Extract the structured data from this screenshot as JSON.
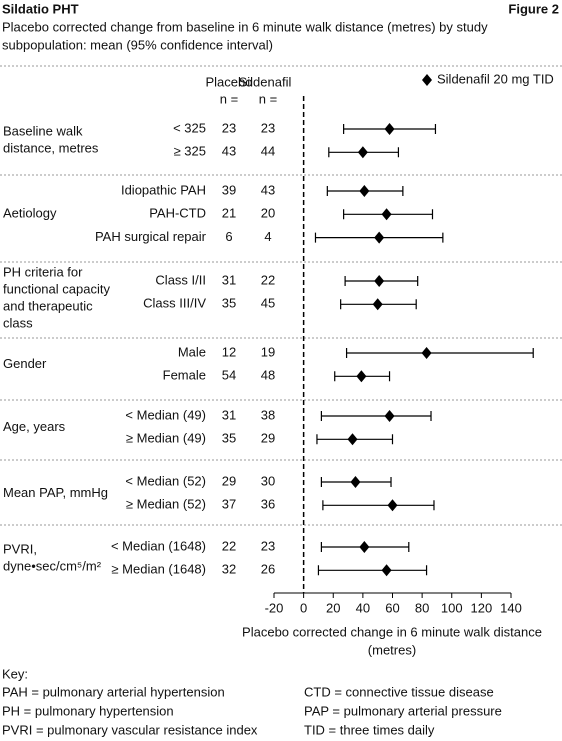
{
  "chart_data": {
    "type": "forest",
    "title": "Sildatio PHT",
    "figure_label": "Figure 2",
    "subtitle_lines": [
      "Placebo corrected change from baseline in 6 minute walk distance (metres) by study",
      "subpopulation: mean (95% confidence interval)"
    ],
    "columns": [
      {
        "name": "Placebo",
        "sub": "n ="
      },
      {
        "name": "Sildenafil",
        "sub": "n ="
      }
    ],
    "series": [
      {
        "name": "Sildenafil 20 mg TID",
        "color": "#000000"
      }
    ],
    "groups": [
      {
        "label_lines": [
          "Baseline walk",
          "distance, metres"
        ],
        "rows": [
          {
            "label": "< 325",
            "placebo_n": 23,
            "sildenafil_n": 23,
            "estimate": 58,
            "lower": 27,
            "upper": 89
          },
          {
            "label": "≥ 325",
            "placebo_n": 43,
            "sildenafil_n": 44,
            "estimate": 40,
            "lower": 17,
            "upper": 64
          }
        ]
      },
      {
        "label_lines": [
          "Aetiology"
        ],
        "rows": [
          {
            "label": "Idiopathic PAH",
            "placebo_n": 39,
            "sildenafil_n": 43,
            "estimate": 41,
            "lower": 16,
            "upper": 67
          },
          {
            "label": "PAH-CTD",
            "placebo_n": 21,
            "sildenafil_n": 20,
            "estimate": 56,
            "lower": 27,
            "upper": 87
          },
          {
            "label": "PAH surgical repair",
            "placebo_n": 6,
            "sildenafil_n": 4,
            "estimate": 51,
            "lower": 8,
            "upper": 94
          }
        ]
      },
      {
        "label_lines": [
          "PH criteria for",
          "functional capacity",
          "and therapeutic",
          "class"
        ],
        "rows": [
          {
            "label": "Class I/II",
            "placebo_n": 31,
            "sildenafil_n": 22,
            "estimate": 51,
            "lower": 28,
            "upper": 77
          },
          {
            "label": "Class III/IV",
            "placebo_n": 35,
            "sildenafil_n": 45,
            "estimate": 50,
            "lower": 25,
            "upper": 76
          }
        ]
      },
      {
        "label_lines": [
          "Gender"
        ],
        "rows": [
          {
            "label": "Male",
            "placebo_n": 12,
            "sildenafil_n": 19,
            "estimate": 83,
            "lower": 29,
            "upper": 155
          },
          {
            "label": "Female",
            "placebo_n": 54,
            "sildenafil_n": 48,
            "estimate": 39,
            "lower": 21,
            "upper": 58
          }
        ]
      },
      {
        "label_lines": [
          "Age, years"
        ],
        "rows": [
          {
            "label": "< Median (49)",
            "placebo_n": 31,
            "sildenafil_n": 38,
            "estimate": 58,
            "lower": 12,
            "upper": 86
          },
          {
            "label": "≥ Median (49)",
            "placebo_n": 35,
            "sildenafil_n": 29,
            "estimate": 33,
            "lower": 9,
            "upper": 60
          }
        ]
      },
      {
        "label_lines": [
          "Mean PAP, mmHg"
        ],
        "rows": [
          {
            "label": "< Median (52)",
            "placebo_n": 29,
            "sildenafil_n": 30,
            "estimate": 35,
            "lower": 12,
            "upper": 59
          },
          {
            "label": "≥ Median (52)",
            "placebo_n": 37,
            "sildenafil_n": 36,
            "estimate": 60,
            "lower": 13,
            "upper": 88
          }
        ]
      },
      {
        "label_lines": [
          "PVRI,",
          "dyne•sec/cm⁵/m²"
        ],
        "rows": [
          {
            "label": "< Median (1648)",
            "placebo_n": 22,
            "sildenafil_n": 23,
            "estimate": 41,
            "lower": 12,
            "upper": 71
          },
          {
            "label": "≥ Median (1648)",
            "placebo_n": 32,
            "sildenafil_n": 26,
            "estimate": 56,
            "lower": 10,
            "upper": 83
          }
        ]
      }
    ],
    "reference_line": 0,
    "xlim": [
      -20,
      140
    ],
    "xticks": [
      -20,
      0,
      20,
      40,
      60,
      80,
      100,
      120,
      140
    ],
    "x_label_lines": [
      "Placebo corrected change in 6 minute walk distance",
      "(metres)"
    ],
    "legend": "upper right"
  },
  "key": {
    "title": "Key:",
    "entries": [
      [
        "PAH = pulmonary arterial hypertension",
        "CTD = connective tissue disease"
      ],
      [
        "PH = pulmonary hypertension",
        "PAP = pulmonary arterial pressure"
      ],
      [
        "PVRI = pulmonary vascular resistance index",
        "TID = three times daily"
      ]
    ]
  }
}
